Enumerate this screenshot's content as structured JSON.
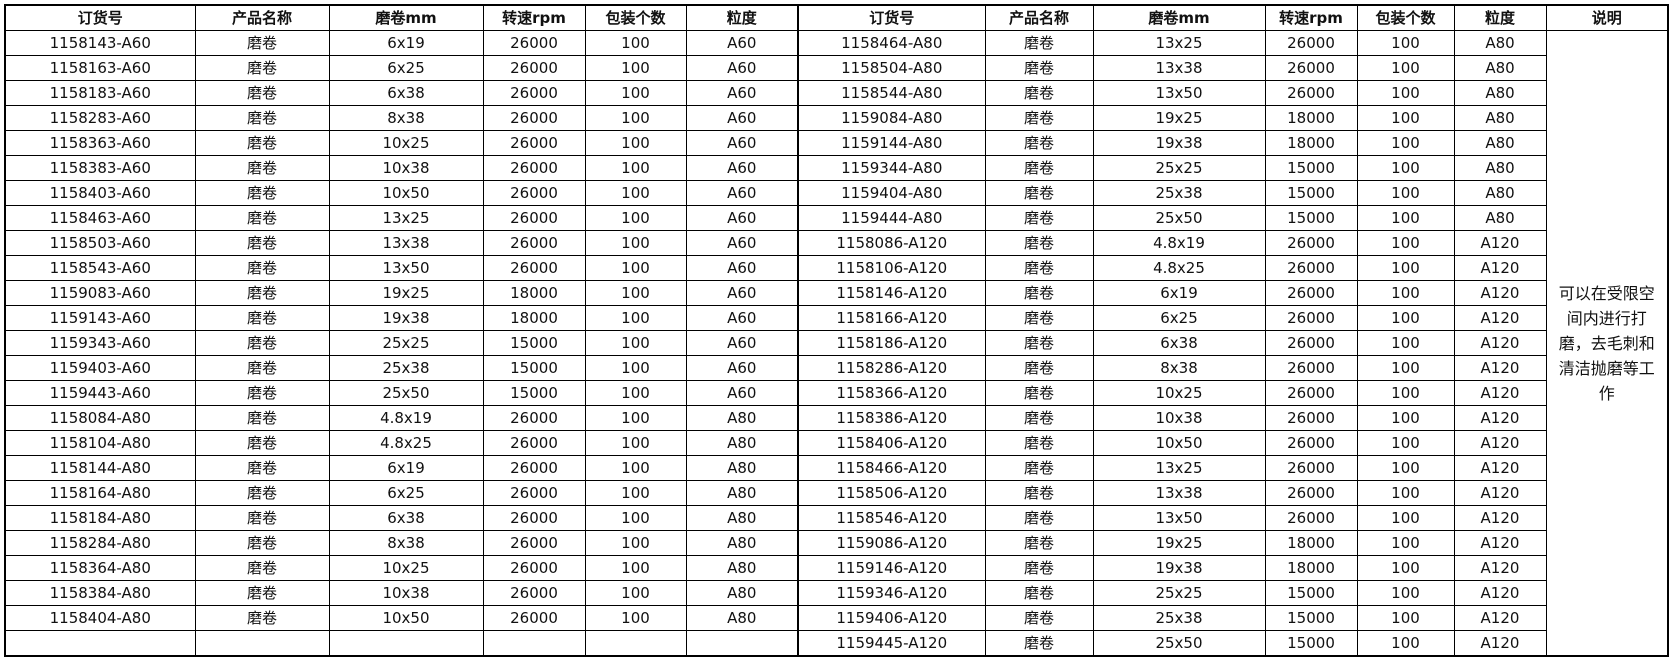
{
  "table": {
    "left": {
      "headers": [
        "订货号",
        "产品名称",
        "磨卷mm",
        "转速rpm",
        "包装个数",
        "粒度"
      ],
      "rows": [
        [
          "1158143-A60",
          "磨卷",
          "6x19",
          "26000",
          "100",
          "A60"
        ],
        [
          "1158163-A60",
          "磨卷",
          "6x25",
          "26000",
          "100",
          "A60"
        ],
        [
          "1158183-A60",
          "磨卷",
          "6x38",
          "26000",
          "100",
          "A60"
        ],
        [
          "1158283-A60",
          "磨卷",
          "8x38",
          "26000",
          "100",
          "A60"
        ],
        [
          "1158363-A60",
          "磨卷",
          "10x25",
          "26000",
          "100",
          "A60"
        ],
        [
          "1158383-A60",
          "磨卷",
          "10x38",
          "26000",
          "100",
          "A60"
        ],
        [
          "1158403-A60",
          "磨卷",
          "10x50",
          "26000",
          "100",
          "A60"
        ],
        [
          "1158463-A60",
          "磨卷",
          "13x25",
          "26000",
          "100",
          "A60"
        ],
        [
          "1158503-A60",
          "磨卷",
          "13x38",
          "26000",
          "100",
          "A60"
        ],
        [
          "1158543-A60",
          "磨卷",
          "13x50",
          "26000",
          "100",
          "A60"
        ],
        [
          "1159083-A60",
          "磨卷",
          "19x25",
          "18000",
          "100",
          "A60"
        ],
        [
          "1159143-A60",
          "磨卷",
          "19x38",
          "18000",
          "100",
          "A60"
        ],
        [
          "1159343-A60",
          "磨卷",
          "25x25",
          "15000",
          "100",
          "A60"
        ],
        [
          "1159403-A60",
          "磨卷",
          "25x38",
          "15000",
          "100",
          "A60"
        ],
        [
          "1159443-A60",
          "磨卷",
          "25x50",
          "15000",
          "100",
          "A60"
        ],
        [
          "1158084-A80",
          "磨卷",
          "4.8x19",
          "26000",
          "100",
          "A80"
        ],
        [
          "1158104-A80",
          "磨卷",
          "4.8x25",
          "26000",
          "100",
          "A80"
        ],
        [
          "1158144-A80",
          "磨卷",
          "6x19",
          "26000",
          "100",
          "A80"
        ],
        [
          "1158164-A80",
          "磨卷",
          "6x25",
          "26000",
          "100",
          "A80"
        ],
        [
          "1158184-A80",
          "磨卷",
          "6x38",
          "26000",
          "100",
          "A80"
        ],
        [
          "1158284-A80",
          "磨卷",
          "8x38",
          "26000",
          "100",
          "A80"
        ],
        [
          "1158364-A80",
          "磨卷",
          "10x25",
          "26000",
          "100",
          "A80"
        ],
        [
          "1158384-A80",
          "磨卷",
          "10x38",
          "26000",
          "100",
          "A80"
        ],
        [
          "1158404-A80",
          "磨卷",
          "10x50",
          "26000",
          "100",
          "A80"
        ]
      ]
    },
    "right": {
      "headers": [
        "订货号",
        "产品名称",
        "磨卷mm",
        "转速rpm",
        "包装个数",
        "粒度",
        "说明"
      ],
      "rows": [
        [
          "1158464-A80",
          "磨卷",
          "13x25",
          "26000",
          "100",
          "A80"
        ],
        [
          "1158504-A80",
          "磨卷",
          "13x38",
          "26000",
          "100",
          "A80"
        ],
        [
          "1158544-A80",
          "磨卷",
          "13x50",
          "26000",
          "100",
          "A80"
        ],
        [
          "1159084-A80",
          "磨卷",
          "19x25",
          "18000",
          "100",
          "A80"
        ],
        [
          "1159144-A80",
          "磨卷",
          "19x38",
          "18000",
          "100",
          "A80"
        ],
        [
          "1159344-A80",
          "磨卷",
          "25x25",
          "15000",
          "100",
          "A80"
        ],
        [
          "1159404-A80",
          "磨卷",
          "25x38",
          "15000",
          "100",
          "A80"
        ],
        [
          "1159444-A80",
          "磨卷",
          "25x50",
          "15000",
          "100",
          "A80"
        ],
        [
          "1158086-A120",
          "磨卷",
          "4.8x19",
          "26000",
          "100",
          "A120"
        ],
        [
          "1158106-A120",
          "磨卷",
          "4.8x25",
          "26000",
          "100",
          "A120"
        ],
        [
          "1158146-A120",
          "磨卷",
          "6x19",
          "26000",
          "100",
          "A120"
        ],
        [
          "1158166-A120",
          "磨卷",
          "6x25",
          "26000",
          "100",
          "A120"
        ],
        [
          "1158186-A120",
          "磨卷",
          "6x38",
          "26000",
          "100",
          "A120"
        ],
        [
          "1158286-A120",
          "磨卷",
          "8x38",
          "26000",
          "100",
          "A120"
        ],
        [
          "1158366-A120",
          "磨卷",
          "10x25",
          "26000",
          "100",
          "A120"
        ],
        [
          "1158386-A120",
          "磨卷",
          "10x38",
          "26000",
          "100",
          "A120"
        ],
        [
          "1158406-A120",
          "磨卷",
          "10x50",
          "26000",
          "100",
          "A120"
        ],
        [
          "1158466-A120",
          "磨卷",
          "13x25",
          "26000",
          "100",
          "A120"
        ],
        [
          "1158506-A120",
          "磨卷",
          "13x38",
          "26000",
          "100",
          "A120"
        ],
        [
          "1158546-A120",
          "磨卷",
          "13x50",
          "26000",
          "100",
          "A120"
        ],
        [
          "1159086-A120",
          "磨卷",
          "19x25",
          "18000",
          "100",
          "A120"
        ],
        [
          "1159146-A120",
          "磨卷",
          "19x38",
          "18000",
          "100",
          "A120"
        ],
        [
          "1159346-A120",
          "磨卷",
          "25x25",
          "15000",
          "100",
          "A120"
        ],
        [
          "1159406-A120",
          "磨卷",
          "25x38",
          "15000",
          "100",
          "A120"
        ],
        [
          "1159445-A120",
          "磨卷",
          "25x50",
          "15000",
          "100",
          "A120"
        ]
      ]
    },
    "note": "可以在受限空间内进行打磨，去毛刺和清洁抛磨等工作"
  }
}
